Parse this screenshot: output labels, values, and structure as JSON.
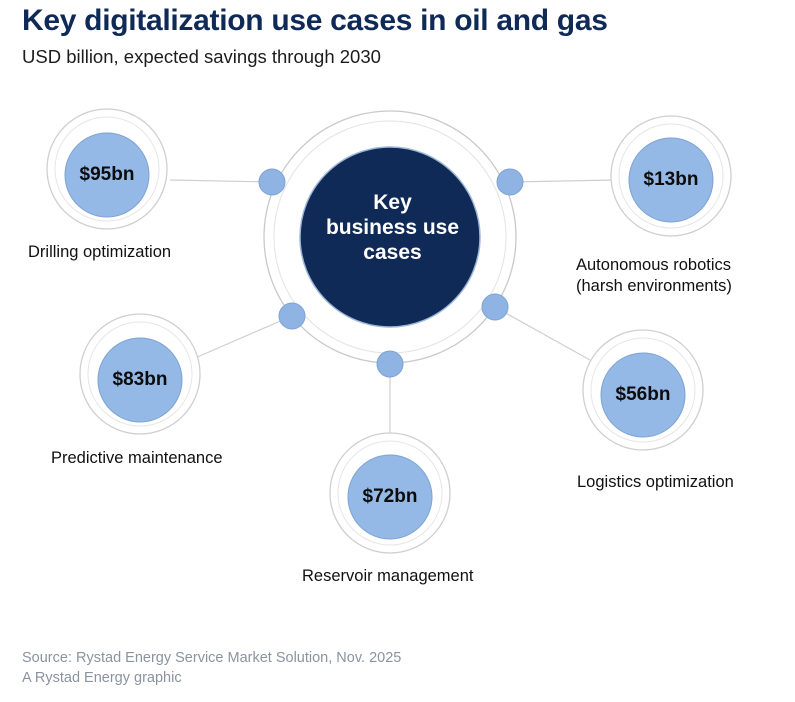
{
  "header": {
    "title": "Key digitalization use cases in oil and gas",
    "subtitle": "USD billion, expected savings through 2030"
  },
  "center": {
    "lines": [
      "Key",
      "business use",
      "cases"
    ]
  },
  "use_cases": [
    {
      "value": "$95bn",
      "label": "Drilling optimization"
    },
    {
      "value": "$13bn",
      "label_lines": [
        "Autonomous robotics",
        "(harsh environments)"
      ]
    },
    {
      "value": "$83bn",
      "label": "Predictive maintenance"
    },
    {
      "value": "$56bn",
      "label": "Logistics optimization"
    },
    {
      "value": "$72bn",
      "label": "Reservoir management"
    }
  ],
  "footer": {
    "source": "Source: Rystad Energy Service Market Solution, Nov. 2025",
    "credit": "A Rystad Energy graphic"
  },
  "colors": {
    "navy": "#0f2a57",
    "light_blue": "#94b9e6",
    "node_blue": "#8fb3e2",
    "ring_stroke": "#c9c9c9",
    "connector": "#cfcfcf",
    "footer_text": "#8a93a0"
  }
}
